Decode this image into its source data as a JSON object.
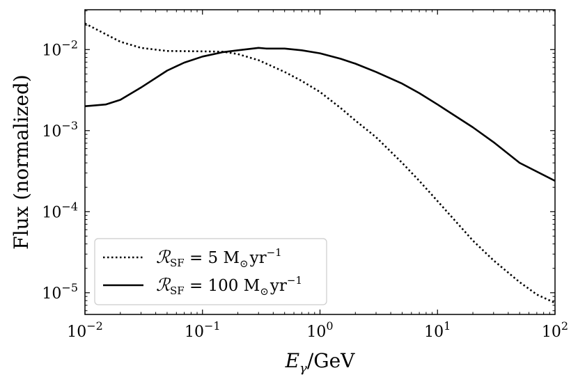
{
  "chart_data": {
    "type": "line",
    "title": "",
    "xlabel": "E_γ/GeV",
    "xlabel_parts": {
      "base": "E",
      "sub": "γ",
      "rest": "/GeV"
    },
    "ylabel": "Flux (normalized)",
    "xscale": "log",
    "yscale": "log",
    "xlim": [
      0.01,
      100
    ],
    "ylim": [
      5.4e-06,
      0.031
    ],
    "x_ticks": [
      {
        "value": 0.01,
        "base": "10",
        "exp": "−2"
      },
      {
        "value": 0.1,
        "base": "10",
        "exp": "−1"
      },
      {
        "value": 1,
        "base": "10",
        "exp": "0"
      },
      {
        "value": 10,
        "base": "10",
        "exp": "1"
      },
      {
        "value": 100,
        "base": "10",
        "exp": "2"
      }
    ],
    "y_ticks": [
      {
        "value": 1e-05,
        "base": "10",
        "exp": "−5"
      },
      {
        "value": 0.0001,
        "base": "10",
        "exp": "−4"
      },
      {
        "value": 0.001,
        "base": "10",
        "exp": "−3"
      },
      {
        "value": 0.01,
        "base": "10",
        "exp": "−2"
      }
    ],
    "grid": false,
    "legend_position": "lower-left",
    "series": [
      {
        "name": "R_SF = 5 M⊙yr^−1",
        "label": {
          "prefix": "ℛ",
          "sub": "SF",
          "middle": " = 5 M",
          "sun": "⊙",
          "unit": "yr",
          "exp": "−1"
        },
        "style": "dotted",
        "color": "#000000",
        "x": [
          0.01,
          0.015,
          0.02,
          0.03,
          0.05,
          0.1,
          0.15,
          0.2,
          0.3,
          0.5,
          0.7,
          1,
          1.5,
          2,
          3,
          5,
          7,
          10,
          20,
          30,
          50,
          70,
          100
        ],
        "y": [
          0.021,
          0.0155,
          0.0125,
          0.0105,
          0.0096,
          0.0095,
          0.0094,
          0.0088,
          0.0074,
          0.0053,
          0.0041,
          0.003,
          0.0019,
          0.00133,
          0.00083,
          0.0004,
          0.00024,
          0.000135,
          4.4e-05,
          2.5e-05,
          1.35e-05,
          9.5e-06,
          7.5e-06
        ]
      },
      {
        "name": "R_SF = 100 M⊙yr^−1",
        "label": {
          "prefix": "ℛ",
          "sub": "SF",
          "middle": " = 100 M",
          "sun": "⊙",
          "unit": "yr",
          "exp": "−1"
        },
        "style": "solid",
        "color": "#000000",
        "x": [
          0.01,
          0.015,
          0.02,
          0.03,
          0.05,
          0.07,
          0.1,
          0.15,
          0.2,
          0.3,
          0.35,
          0.5,
          0.7,
          1,
          1.5,
          2,
          3,
          5,
          7,
          10,
          20,
          30,
          50,
          100
        ],
        "y": [
          0.002,
          0.0021,
          0.0024,
          0.0034,
          0.0055,
          0.0069,
          0.0082,
          0.0093,
          0.0098,
          0.0105,
          0.0103,
          0.0103,
          0.0098,
          0.009,
          0.0077,
          0.0067,
          0.0053,
          0.0038,
          0.0029,
          0.0021,
          0.0011,
          0.00072,
          0.0004,
          0.00024
        ]
      }
    ]
  }
}
